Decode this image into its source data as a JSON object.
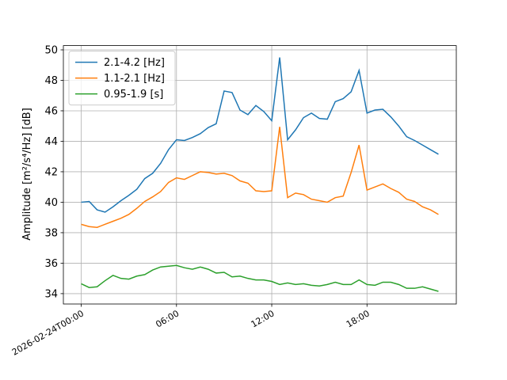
{
  "chart_data": {
    "type": "line",
    "y_label": "Amplitude [m²/s⁴/Hz] [dB]",
    "x": [
      0,
      0.5,
      1,
      1.5,
      2,
      2.5,
      3,
      3.5,
      4,
      4.5,
      5,
      5.5,
      6,
      6.5,
      7,
      7.5,
      8,
      8.5,
      9,
      9.5,
      10,
      10.5,
      11,
      11.5,
      12,
      12.5,
      13,
      13.5,
      14,
      14.5,
      15,
      15.5,
      16,
      16.5,
      17,
      17.5,
      18,
      18.5,
      19,
      19.5,
      20,
      20.5,
      21,
      21.5,
      22,
      22.5
    ],
    "series": [
      {
        "name": "2.1-4.2 [Hz]",
        "color": "#1f77b4",
        "values": [
          40.0,
          40.05,
          39.5,
          39.35,
          39.7,
          40.1,
          40.45,
          40.85,
          41.55,
          41.9,
          42.55,
          43.45,
          44.1,
          44.05,
          44.25,
          44.5,
          44.9,
          45.15,
          47.3,
          47.2,
          46.05,
          45.75,
          46.35,
          45.95,
          45.35,
          49.5,
          44.1,
          44.75,
          45.55,
          45.85,
          45.5,
          45.45,
          46.6,
          46.8,
          47.25,
          48.65,
          45.85,
          46.05,
          46.1,
          45.6,
          45.0,
          44.3,
          44.05,
          43.75,
          43.45,
          43.15
        ]
      },
      {
        "name": "1.1-2.1 [Hz]",
        "color": "#ff7f0e",
        "values": [
          38.55,
          38.4,
          38.35,
          38.55,
          38.75,
          38.95,
          39.2,
          39.6,
          40.05,
          40.35,
          40.7,
          41.3,
          41.6,
          41.5,
          41.75,
          42.0,
          41.95,
          41.85,
          41.9,
          41.75,
          41.4,
          41.25,
          40.75,
          40.7,
          40.75,
          44.95,
          40.3,
          40.6,
          40.5,
          40.2,
          40.1,
          40.0,
          40.3,
          40.4,
          41.95,
          43.75,
          40.8,
          41.0,
          41.2,
          40.9,
          40.65,
          40.2,
          40.05,
          39.7,
          39.5,
          39.2
        ]
      },
      {
        "name": "0.95-1.9 [s]",
        "color": "#2ca02c",
        "values": [
          34.65,
          34.4,
          34.45,
          34.85,
          35.2,
          35.0,
          34.95,
          35.15,
          35.25,
          35.55,
          35.75,
          35.8,
          35.85,
          35.7,
          35.6,
          35.75,
          35.6,
          35.35,
          35.4,
          35.1,
          35.15,
          35.0,
          34.9,
          34.9,
          34.8,
          34.6,
          34.7,
          34.6,
          34.65,
          34.55,
          34.5,
          34.6,
          34.75,
          34.6,
          34.6,
          34.9,
          34.6,
          34.55,
          34.75,
          34.75,
          34.6,
          34.35,
          34.35,
          34.45,
          34.3,
          34.15
        ]
      }
    ],
    "xlim": [
      -1.125,
      23.625
    ],
    "xticks": [
      {
        "value": 0,
        "label": "2026-02-24T00:00"
      },
      {
        "value": 6,
        "label": "06:00"
      },
      {
        "value": 12,
        "label": "12:00"
      },
      {
        "value": 18,
        "label": "18:00"
      }
    ],
    "ylim": [
      33.32,
      50.28
    ],
    "yticks": [
      34,
      36,
      38,
      40,
      42,
      44,
      46,
      48,
      50
    ],
    "grid": true,
    "legend": "upper-left"
  }
}
